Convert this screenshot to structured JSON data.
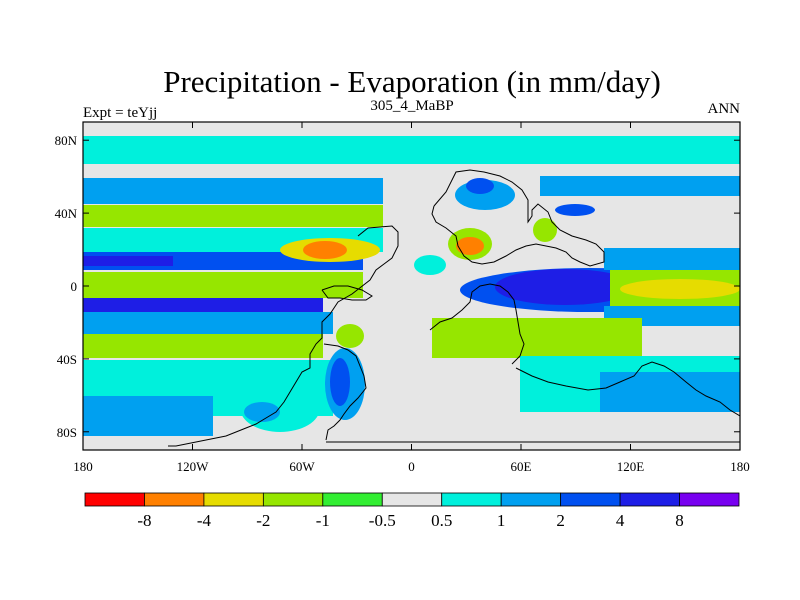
{
  "chart_data": {
    "type": "heatmap",
    "title": "Precipitation - Evaporation (in mm/day)",
    "left_label": "Expt = teYjj",
    "center_label": "305_4_MaBP",
    "right_label": "ANN",
    "x_ticks": [
      "180",
      "120W",
      "60W",
      "0",
      "60E",
      "120E",
      "180"
    ],
    "x_tick_values": [
      -180,
      -120,
      -60,
      0,
      60,
      120,
      180
    ],
    "y_ticks": [
      "80N",
      "40N",
      "0",
      "40S",
      "80S"
    ],
    "y_tick_values": [
      80,
      40,
      0,
      -40,
      -80
    ],
    "xlim": [
      -180,
      180
    ],
    "ylim": [
      -90,
      90
    ],
    "colorbar": {
      "colors": [
        "#ff0000",
        "#ff8000",
        "#e6dc00",
        "#96e600",
        "#32ee32",
        "#e6e6e6",
        "#00f0dc",
        "#00a0f0",
        "#0050f0",
        "#1e1ee6",
        "#7800f0"
      ],
      "labels": [
        "-8",
        "-4",
        "-2",
        "-1",
        "-0.5",
        "0.5",
        "1",
        "2",
        "4",
        "8"
      ]
    }
  }
}
